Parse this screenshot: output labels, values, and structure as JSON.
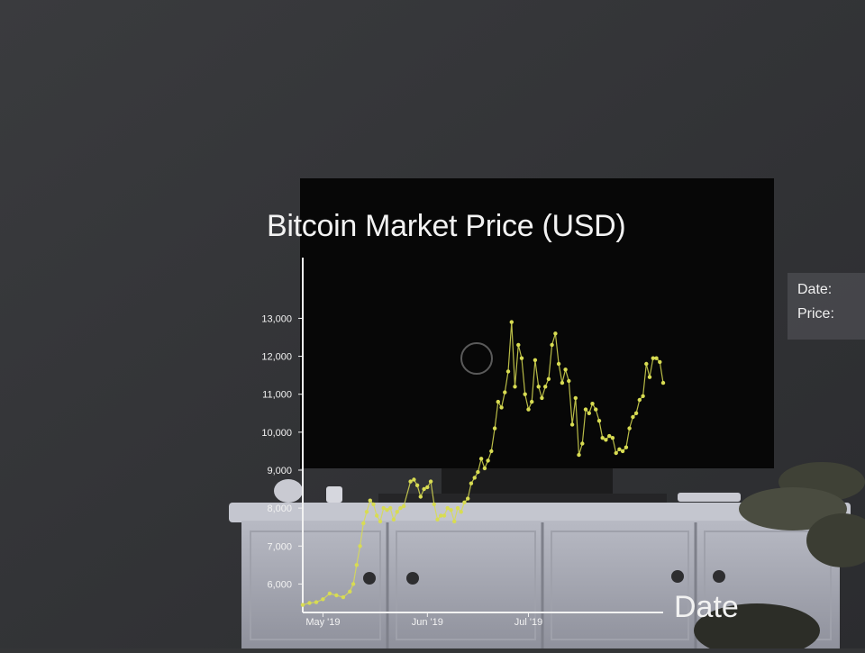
{
  "chart_data": {
    "type": "line",
    "title": "Bitcoin Market Price (USD)",
    "xlabel": "Date",
    "ylabel": "",
    "ylim": [
      5250,
      14600
    ],
    "y_ticks": [
      6000,
      7000,
      8000,
      9000,
      10000,
      11000,
      12000,
      13000
    ],
    "y_tick_labels": [
      "6,000",
      "7,000",
      "8,000",
      "9,000",
      "10,000",
      "11,000",
      "12,000",
      "13,000"
    ],
    "x_ticks": [
      "2019-05-01",
      "2019-06-01",
      "2019-07-01"
    ],
    "x_tick_labels": [
      "May '19",
      "Jun '19",
      "Jul '19"
    ],
    "xlim": [
      "2019-04-25",
      "2019-08-10"
    ],
    "series": [
      {
        "color": "#d8dc52",
        "points": [
          [
            "2019-04-25",
            5450
          ],
          [
            "2019-04-27",
            5500
          ],
          [
            "2019-04-29",
            5520
          ],
          [
            "2019-05-01",
            5600
          ],
          [
            "2019-05-03",
            5750
          ],
          [
            "2019-05-05",
            5700
          ],
          [
            "2019-05-07",
            5650
          ],
          [
            "2019-05-09",
            5800
          ],
          [
            "2019-05-10",
            6000
          ],
          [
            "2019-05-11",
            6500
          ],
          [
            "2019-05-12",
            7000
          ],
          [
            "2019-05-13",
            7600
          ],
          [
            "2019-05-14",
            7900
          ],
          [
            "2019-05-15",
            8200
          ],
          [
            "2019-05-16",
            8100
          ],
          [
            "2019-05-17",
            7800
          ],
          [
            "2019-05-18",
            7650
          ],
          [
            "2019-05-19",
            8000
          ],
          [
            "2019-05-20",
            7950
          ],
          [
            "2019-05-21",
            8000
          ],
          [
            "2019-05-22",
            7700
          ],
          [
            "2019-05-23",
            7900
          ],
          [
            "2019-05-24",
            8000
          ],
          [
            "2019-05-25",
            8050
          ],
          [
            "2019-05-27",
            8700
          ],
          [
            "2019-05-28",
            8750
          ],
          [
            "2019-05-29",
            8600
          ],
          [
            "2019-05-30",
            8300
          ],
          [
            "2019-05-31",
            8500
          ],
          [
            "2019-06-01",
            8550
          ],
          [
            "2019-06-02",
            8700
          ],
          [
            "2019-06-03",
            8100
          ],
          [
            "2019-06-04",
            7700
          ],
          [
            "2019-06-05",
            7800
          ],
          [
            "2019-06-06",
            7800
          ],
          [
            "2019-06-07",
            8000
          ],
          [
            "2019-06-08",
            7950
          ],
          [
            "2019-06-09",
            7650
          ],
          [
            "2019-06-10",
            8000
          ],
          [
            "2019-06-11",
            7900
          ],
          [
            "2019-06-12",
            8150
          ],
          [
            "2019-06-13",
            8250
          ],
          [
            "2019-06-14",
            8650
          ],
          [
            "2019-06-15",
            8800
          ],
          [
            "2019-06-16",
            8950
          ],
          [
            "2019-06-17",
            9300
          ],
          [
            "2019-06-18",
            9050
          ],
          [
            "2019-06-19",
            9250
          ],
          [
            "2019-06-20",
            9500
          ],
          [
            "2019-06-21",
            10100
          ],
          [
            "2019-06-22",
            10800
          ],
          [
            "2019-06-23",
            10650
          ],
          [
            "2019-06-24",
            11050
          ],
          [
            "2019-06-25",
            11600
          ],
          [
            "2019-06-26",
            12900
          ],
          [
            "2019-06-27",
            11200
          ],
          [
            "2019-06-28",
            12300
          ],
          [
            "2019-06-29",
            11950
          ],
          [
            "2019-06-30",
            11000
          ],
          [
            "2019-07-01",
            10600
          ],
          [
            "2019-07-02",
            10800
          ],
          [
            "2019-07-03",
            11900
          ],
          [
            "2019-07-04",
            11200
          ],
          [
            "2019-07-05",
            10900
          ],
          [
            "2019-07-06",
            11200
          ],
          [
            "2019-07-07",
            11400
          ],
          [
            "2019-07-08",
            12300
          ],
          [
            "2019-07-09",
            12600
          ],
          [
            "2019-07-10",
            11800
          ],
          [
            "2019-07-11",
            11300
          ],
          [
            "2019-07-12",
            11650
          ],
          [
            "2019-07-13",
            11350
          ],
          [
            "2019-07-14",
            10200
          ],
          [
            "2019-07-15",
            10900
          ],
          [
            "2019-07-16",
            9400
          ],
          [
            "2019-07-17",
            9700
          ],
          [
            "2019-07-18",
            10600
          ],
          [
            "2019-07-19",
            10500
          ],
          [
            "2019-07-20",
            10750
          ],
          [
            "2019-07-21",
            10600
          ],
          [
            "2019-07-22",
            10300
          ],
          [
            "2019-07-23",
            9850
          ],
          [
            "2019-07-24",
            9800
          ],
          [
            "2019-07-25",
            9900
          ],
          [
            "2019-07-26",
            9850
          ],
          [
            "2019-07-27",
            9450
          ],
          [
            "2019-07-28",
            9550
          ],
          [
            "2019-07-29",
            9500
          ],
          [
            "2019-07-30",
            9600
          ],
          [
            "2019-07-31",
            10100
          ],
          [
            "2019-08-01",
            10400
          ],
          [
            "2019-08-02",
            10500
          ],
          [
            "2019-08-03",
            10850
          ],
          [
            "2019-08-04",
            10950
          ],
          [
            "2019-08-05",
            11800
          ],
          [
            "2019-08-06",
            11450
          ],
          [
            "2019-08-07",
            11950
          ],
          [
            "2019-08-08",
            11950
          ],
          [
            "2019-08-09",
            11850
          ],
          [
            "2019-08-10",
            11300
          ]
        ]
      }
    ],
    "grid": false,
    "legend": "none"
  },
  "tooltip": {
    "date_label": "Date:",
    "price_label": "Price:"
  },
  "colors": {
    "wall": "#343537",
    "tv_screen": "#050505",
    "cabinet": "#a7a9b4",
    "axis": "#f2f2f2",
    "text": "#f2f2f2",
    "line": "#d8dc52"
  }
}
